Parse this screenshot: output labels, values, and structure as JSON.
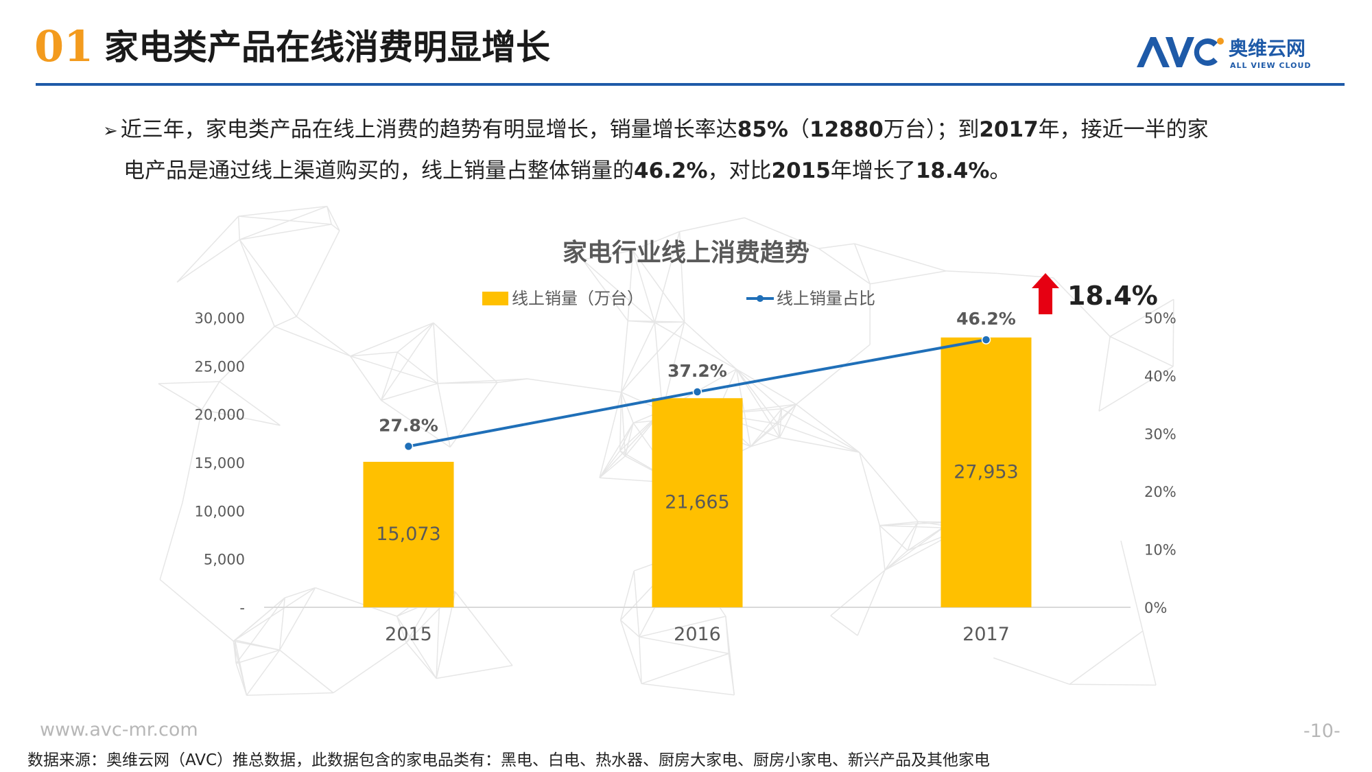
{
  "header": {
    "section_number": "01",
    "title": "家电类产品在线消费明显增长",
    "logo_text": "奥维云网",
    "logo_subtext": "ALL VIEW CLOUD",
    "logo_mark": "AVC"
  },
  "bullet": {
    "line1": {
      "t1": "近三年，家电类产品在线上消费的趋势有明显增长，销量增长率达",
      "b1": "85%",
      "t2": "（",
      "b2": "12880",
      "t3": "万台）；到",
      "b3": "2017",
      "t4": "年，接近一半的家"
    },
    "line2": {
      "t1": "电产品是通过线上渠道购买的，线上销量占整体销量的",
      "b1": "46.2%",
      "t2": "，对比",
      "b2": "2015",
      "t3": "年增长了",
      "b3": "18.4%",
      "t4": "。"
    }
  },
  "chart_data": {
    "type": "bar",
    "title": "家电行业线上消费趋势",
    "categories": [
      "2015",
      "2016",
      "2017"
    ],
    "series": [
      {
        "name": "线上销量（万台）",
        "chart": "bar",
        "axis": "left",
        "values": [
          15073,
          21665,
          27953
        ],
        "labels": [
          "15,073",
          "21,665",
          "27,953"
        ],
        "color": "#FFC000"
      },
      {
        "name": "线上销量占比",
        "chart": "line",
        "axis": "right",
        "values": [
          27.8,
          37.2,
          46.2
        ],
        "labels": [
          "27.8%",
          "37.2%",
          "46.2%"
        ],
        "color": "#1F6FB8"
      }
    ],
    "left_axis": {
      "ylim": [
        0,
        30000
      ],
      "ticks": [
        "-",
        "5,000",
        "10,000",
        "15,000",
        "20,000",
        "25,000",
        "30,000"
      ]
    },
    "right_axis": {
      "ylim": [
        0,
        50
      ],
      "ticks": [
        "0%",
        "10%",
        "20%",
        "30%",
        "40%",
        "50%"
      ]
    },
    "legend": "top",
    "grid": false,
    "annotation": {
      "text": "18.4%",
      "arrow_color": "#E60012"
    }
  },
  "footer": {
    "url": "www.avc-mr.com",
    "page": "-10-",
    "source": "数据来源：奥维云网（AVC）推总数据，此数据包含的家电品类有：黑电、白电、热水器、厨房大家电、厨房小家电、新兴产品及其他家电"
  },
  "colors": {
    "accent_orange": "#F39B1E",
    "brand_blue": "#1E5AA8",
    "bar": "#FFC000",
    "line": "#1F6FB8",
    "arrow": "#E60012"
  }
}
